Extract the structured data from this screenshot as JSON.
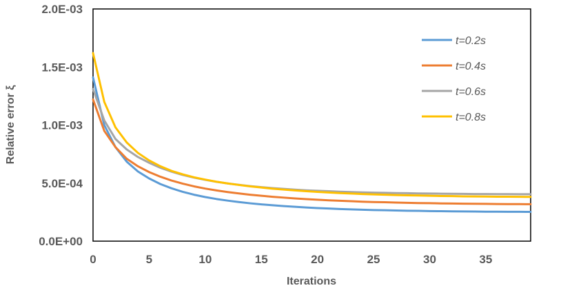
{
  "chart_data": {
    "type": "line",
    "title": "",
    "xlabel": "Iterations",
    "ylabel": "Relative error ξ",
    "xlim": [
      0,
      39
    ],
    "ylim": [
      0,
      0.002
    ],
    "x_ticks": [
      0,
      5,
      10,
      15,
      20,
      25,
      30,
      35
    ],
    "x_tick_labels": [
      "0",
      "5",
      "10",
      "15",
      "20",
      "25",
      "30",
      "35"
    ],
    "y_ticks": [
      0,
      0.0005,
      0.001,
      0.0015,
      0.002
    ],
    "y_tick_labels": [
      "0.0E+00",
      "5.0E-04",
      "1.0E-03",
      "1.5E-03",
      "2.0E-03"
    ],
    "grid": false,
    "legend_position": "top-right",
    "x": [
      0,
      1,
      2,
      3,
      4,
      5,
      6,
      7,
      8,
      9,
      10,
      11,
      12,
      13,
      14,
      15,
      16,
      17,
      18,
      19,
      20,
      21,
      22,
      23,
      24,
      25,
      26,
      27,
      28,
      29,
      30,
      31,
      32,
      33,
      34,
      35,
      36,
      37,
      38,
      39
    ],
    "series": [
      {
        "name": "t=0.2s",
        "color": "#5B9BD5",
        "values": [
          0.00141,
          0.001,
          0.00081,
          0.000685,
          0.0006,
          0.00054,
          0.000492,
          0.000455,
          0.000425,
          0.0004,
          0.00038,
          0.000363,
          0.000349,
          0.000337,
          0.000326,
          0.000317,
          0.000309,
          0.000302,
          0.000296,
          0.00029,
          0.000285,
          0.000281,
          0.000277,
          0.000274,
          0.000271,
          0.000268,
          0.000266,
          0.000264,
          0.000262,
          0.000261,
          0.000259,
          0.000258,
          0.000257,
          0.000256,
          0.000255,
          0.000254,
          0.000254,
          0.000253,
          0.000253,
          0.000252
        ]
      },
      {
        "name": "t=0.4s",
        "color": "#ED7D31",
        "values": [
          0.00122,
          0.00095,
          0.00081,
          0.00071,
          0.000645,
          0.000595,
          0.000555,
          0.000522,
          0.000495,
          0.000472,
          0.000453,
          0.000437,
          0.000423,
          0.000411,
          0.0004,
          0.000391,
          0.000382,
          0.000375,
          0.000368,
          0.000362,
          0.000357,
          0.000352,
          0.000348,
          0.000344,
          0.00034,
          0.000337,
          0.000335,
          0.000332,
          0.00033,
          0.000328,
          0.000327,
          0.000325,
          0.000324,
          0.000323,
          0.000322,
          0.000321,
          0.00032,
          0.000319,
          0.000319,
          0.000318
        ]
      },
      {
        "name": "t=0.6s",
        "color": "#A5A5A5",
        "values": [
          0.00131,
          0.00104,
          0.00088,
          0.00079,
          0.000725,
          0.000675,
          0.000632,
          0.000598,
          0.00057,
          0.000547,
          0.000528,
          0.000511,
          0.000497,
          0.000485,
          0.000474,
          0.000465,
          0.000457,
          0.00045,
          0.000444,
          0.000438,
          0.000434,
          0.00043,
          0.000426,
          0.000423,
          0.00042,
          0.000418,
          0.000416,
          0.000414,
          0.000413,
          0.000411,
          0.00041,
          0.000409,
          0.000408,
          0.000407,
          0.000406,
          0.000406,
          0.000405,
          0.000405,
          0.000404,
          0.000404
        ]
      },
      {
        "name": "t=0.8s",
        "color": "#FFC000",
        "values": [
          0.00162,
          0.0012,
          0.00098,
          0.00085,
          0.00076,
          0.000695,
          0.000645,
          0.000605,
          0.000575,
          0.00055,
          0.00053,
          0.000512,
          0.000497,
          0.000484,
          0.000472,
          0.000462,
          0.000452,
          0.000444,
          0.000437,
          0.00043,
          0.000424,
          0.000419,
          0.000414,
          0.00041,
          0.000406,
          0.000403,
          0.0004,
          0.000397,
          0.000395,
          0.000393,
          0.000391,
          0.000389,
          0.000388,
          0.000386,
          0.000385,
          0.000384,
          0.000383,
          0.000383,
          0.000382,
          0.000381
        ]
      }
    ]
  }
}
